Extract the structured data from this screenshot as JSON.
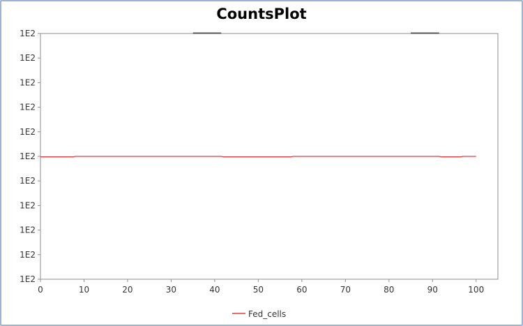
{
  "chart_data": {
    "type": "line",
    "title": "CountsPlot",
    "xlabel": "",
    "ylabel": "",
    "xlim": [
      0,
      105
    ],
    "ylim": [
      0,
      10
    ],
    "x_ticks": [
      0,
      10,
      20,
      30,
      40,
      50,
      60,
      70,
      80,
      90,
      100
    ],
    "y_tick_labels": [
      "1E2",
      "1E2",
      "1E2",
      "1E2",
      "1E2",
      "1E2",
      "1E2",
      "1E2",
      "1E2",
      "1E2",
      "1E2"
    ],
    "grid": false,
    "legend": "bottom",
    "series": [
      {
        "name": "Fed_cells",
        "color": "#e03a3a",
        "x": [
          0,
          7.5,
          8,
          41.5,
          42,
          57.5,
          58,
          91.5,
          92,
          96.5,
          97,
          100
        ],
        "y": [
          4.98,
          4.98,
          5.0,
          5.0,
          4.98,
          4.98,
          5.0,
          5.0,
          4.98,
          4.98,
          5.0,
          5.0
        ]
      }
    ],
    "top_marks": [
      {
        "x": [
          35,
          41.5
        ],
        "y": 10
      },
      {
        "x": [
          85,
          91.5
        ],
        "y": 10
      }
    ]
  }
}
